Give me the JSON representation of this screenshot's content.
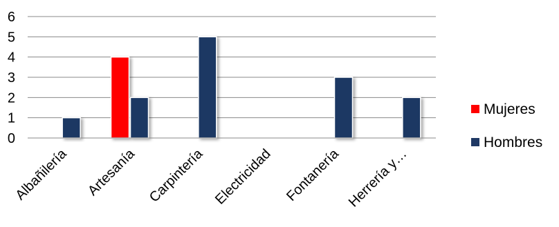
{
  "chart_data": {
    "type": "bar",
    "categories": [
      "Albañilería",
      "Artesanía",
      "Carpintería",
      "Electricidad",
      "Fontanería",
      "Herrería y…"
    ],
    "series": [
      {
        "name": "Mujeres",
        "values": [
          0,
          4,
          0,
          0,
          0,
          0
        ],
        "color": "#ff0000"
      },
      {
        "name": "Hombres",
        "values": [
          1,
          2,
          5,
          0,
          3,
          2
        ],
        "color": "#1f3864"
      }
    ],
    "ylim": [
      0,
      6
    ],
    "yticks": [
      0,
      1,
      2,
      3,
      4,
      5,
      6
    ],
    "grid": true,
    "legend": "right",
    "title": "",
    "xlabel": "",
    "ylabel": ""
  }
}
